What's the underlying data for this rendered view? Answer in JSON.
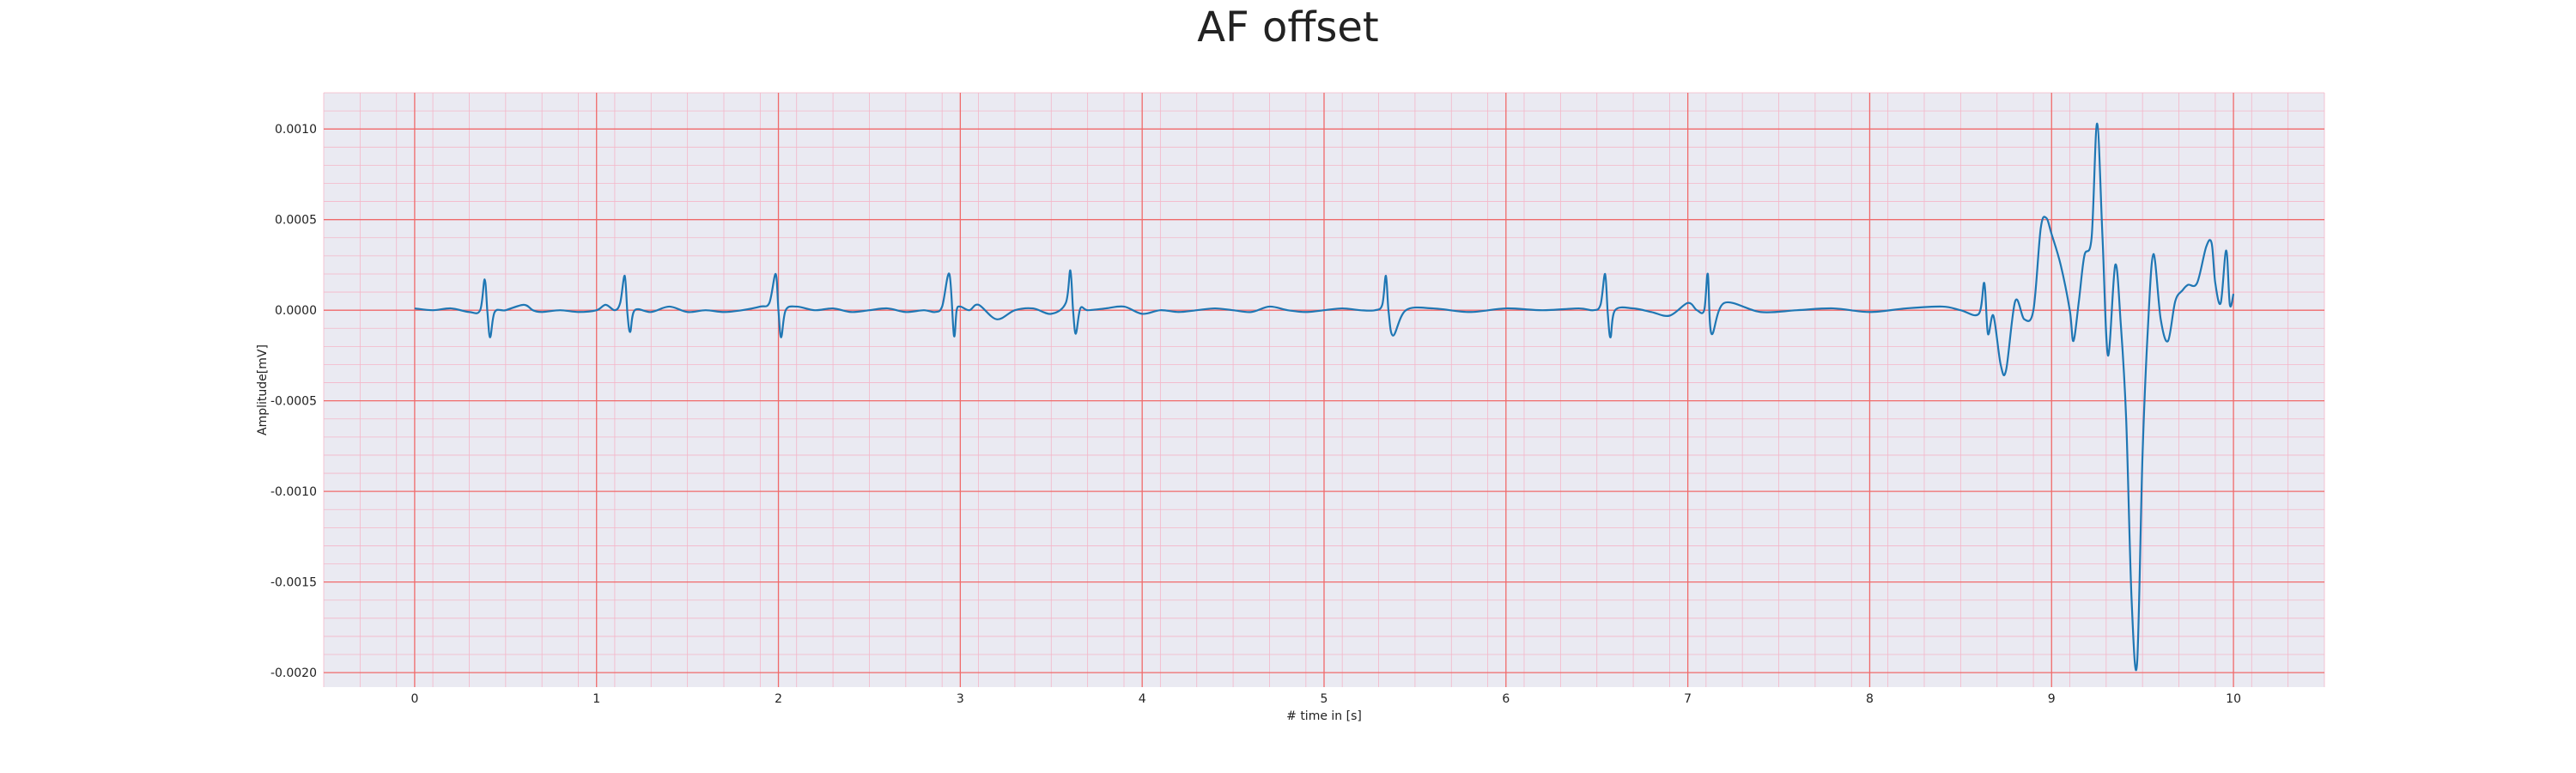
{
  "chart_data": {
    "type": "line",
    "title": "AF offset",
    "xlabel": "# time in [s]",
    "ylabel": "Amplitude[mV]",
    "xlim": [
      -0.5,
      10.5
    ],
    "ylim": [
      -0.00208,
      0.0012
    ],
    "x_ticks": [
      0,
      1,
      2,
      3,
      4,
      5,
      6,
      7,
      8,
      9,
      10
    ],
    "x_tick_labels": [
      "0",
      "1",
      "2",
      "3",
      "4",
      "5",
      "6",
      "7",
      "8",
      "9",
      "10"
    ],
    "y_ticks": [
      0.001,
      0.0005,
      0.0,
      -0.0005,
      -0.001,
      -0.0015,
      -0.002
    ],
    "y_tick_labels": [
      "0.0010",
      "0.0005",
      "0.0000",
      "-0.0005",
      "-0.0010",
      "-0.0015",
      "-0.0020"
    ],
    "grid": true,
    "series": [
      {
        "color": "#1f77b4",
        "x": [
          0.0,
          0.1,
          0.2,
          0.3,
          0.36,
          0.385,
          0.4,
          0.415,
          0.44,
          0.5,
          0.6,
          0.65,
          0.7,
          0.8,
          0.9,
          1.0,
          1.05,
          1.1,
          1.13,
          1.155,
          1.17,
          1.185,
          1.21,
          1.3,
          1.4,
          1.5,
          1.6,
          1.7,
          1.8,
          1.9,
          1.95,
          1.985,
          2.0,
          2.015,
          2.04,
          2.1,
          2.2,
          2.3,
          2.4,
          2.5,
          2.6,
          2.7,
          2.8,
          2.86,
          2.9,
          2.94,
          2.965,
          2.98,
          3.0,
          3.05,
          3.1,
          3.2,
          3.3,
          3.4,
          3.5,
          3.58,
          3.605,
          3.62,
          3.635,
          3.66,
          3.7,
          3.8,
          3.9,
          4.0,
          4.1,
          4.2,
          4.3,
          4.4,
          4.5,
          4.6,
          4.7,
          4.8,
          4.9,
          5.0,
          5.1,
          5.2,
          5.28,
          5.32,
          5.34,
          5.355,
          5.38,
          5.45,
          5.6,
          5.8,
          6.0,
          6.2,
          6.4,
          6.48,
          6.52,
          6.545,
          6.56,
          6.575,
          6.6,
          6.7,
          6.8,
          6.9,
          7.0,
          7.05,
          7.09,
          7.11,
          7.13,
          7.2,
          7.4,
          7.6,
          7.8,
          8.0,
          8.2,
          8.4,
          8.5,
          8.6,
          8.63,
          8.65,
          8.68,
          8.72,
          8.75,
          8.8,
          8.85,
          8.9,
          8.94,
          8.97,
          9.0,
          9.05,
          9.1,
          9.12,
          9.15,
          9.18,
          9.22,
          9.25,
          9.28,
          9.31,
          9.35,
          9.38,
          9.41,
          9.44,
          9.47,
          9.5,
          9.53,
          9.56,
          9.6,
          9.64,
          9.68,
          9.72,
          9.75,
          9.8,
          9.85,
          9.88,
          9.9,
          9.93,
          9.96,
          9.98,
          10.0
        ],
        "y": [
          1e-05,
          0.0,
          1e-05,
          -1e-05,
          0.0,
          0.00017,
          -1e-05,
          -0.00015,
          -1e-05,
          0.0,
          3e-05,
          0.0,
          -1e-05,
          0.0,
          -1e-05,
          0.0,
          3e-05,
          0.0,
          4e-05,
          0.00019,
          -2e-05,
          -0.00012,
          0.0,
          -1e-05,
          2e-05,
          -1e-05,
          0.0,
          -1e-05,
          0.0,
          2e-05,
          4e-05,
          0.0002,
          0.0,
          -0.00015,
          0.0,
          2e-05,
          0.0,
          1e-05,
          -1e-05,
          0.0,
          1e-05,
          -1e-05,
          0.0,
          -1e-05,
          2e-05,
          0.0002,
          -0.00014,
          0.0,
          2e-05,
          0.0,
          3e-05,
          -5e-05,
          0.0,
          1e-05,
          -2e-05,
          4e-05,
          0.00022,
          0.0,
          -0.00013,
          1e-05,
          0.0,
          1e-05,
          2e-05,
          -2e-05,
          0.0,
          -1e-05,
          0.0,
          1e-05,
          0.0,
          -1e-05,
          2e-05,
          0.0,
          -1e-05,
          0.0,
          1e-05,
          0.0,
          0.0,
          3e-05,
          0.00019,
          -1e-05,
          -0.00014,
          0.0,
          1e-05,
          -1e-05,
          1e-05,
          0.0,
          1e-05,
          0.0,
          3e-05,
          0.0002,
          -2e-05,
          -0.00015,
          0.0,
          1e-05,
          -1e-05,
          -3e-05,
          4e-05,
          0.0,
          0.0,
          0.0002,
          -0.00013,
          4e-05,
          -1e-05,
          0.0,
          1e-05,
          -1e-05,
          1e-05,
          2e-05,
          0.0,
          -2e-05,
          0.00015,
          -0.00013,
          -3e-05,
          -0.0003,
          -0.00033,
          5e-05,
          -5e-05,
          0.0,
          0.00045,
          0.00051,
          0.00042,
          0.00025,
          0.0,
          -0.00017,
          5e-05,
          0.0003,
          0.0004,
          0.00103,
          0.0004,
          -0.00025,
          0.00025,
          -7e-05,
          -0.0006,
          -0.0016,
          -0.00195,
          -0.0008,
          -9e-05,
          0.00031,
          -5e-05,
          -0.00017,
          5e-05,
          0.00011,
          0.00014,
          0.00015,
          0.00035,
          0.00037,
          0.00015,
          4e-05,
          0.00033,
          3e-05,
          9e-05
        ]
      }
    ]
  }
}
